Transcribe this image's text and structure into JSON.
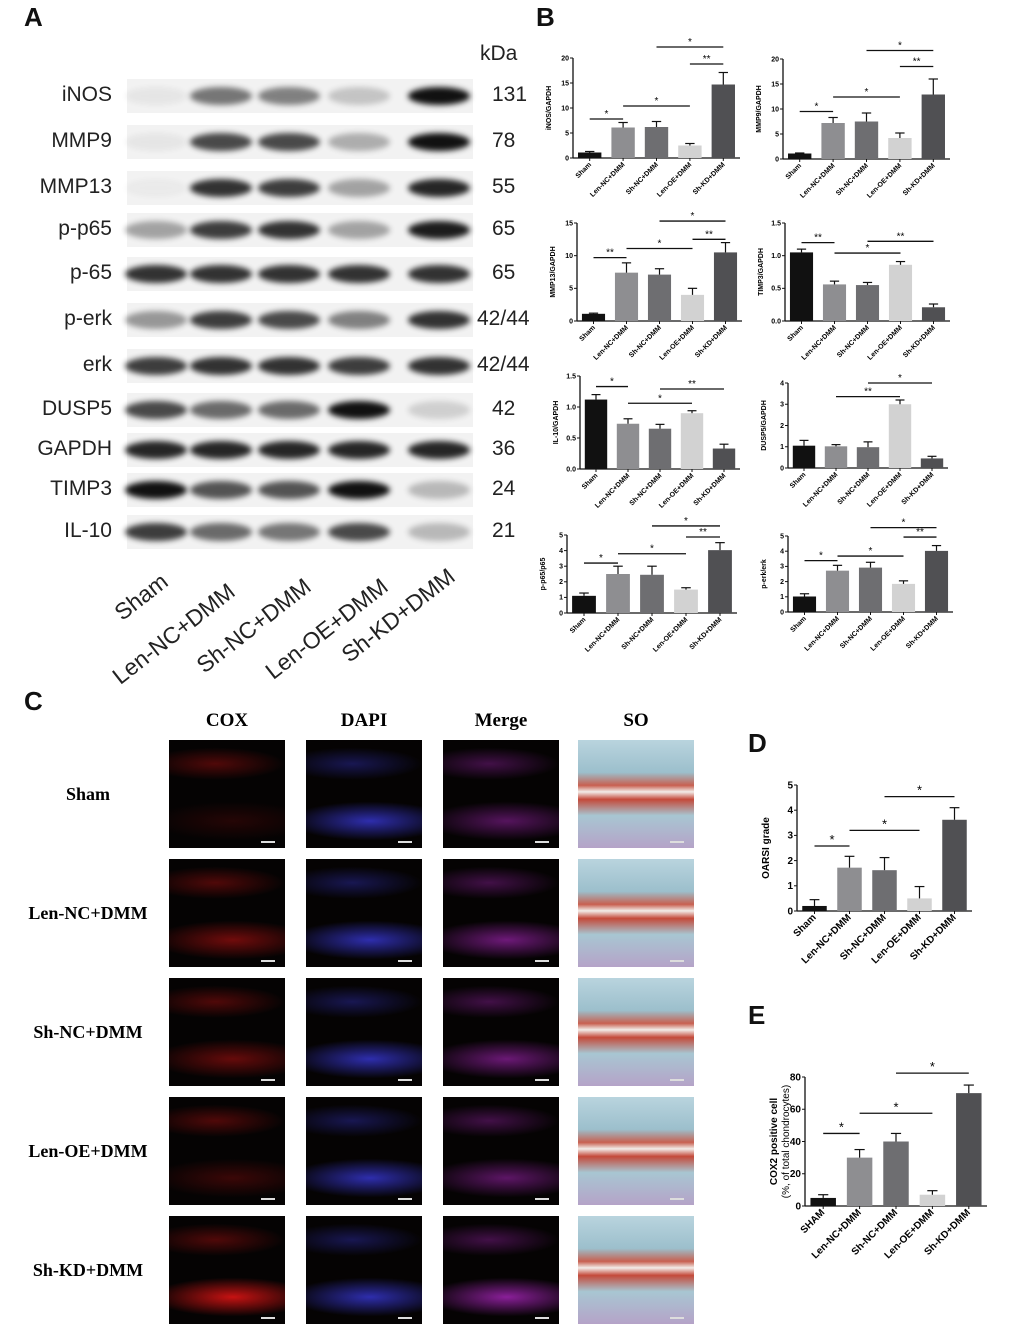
{
  "panels": {
    "a": "A",
    "b": "B",
    "c": "C",
    "d": "D",
    "e": "E"
  },
  "blot": {
    "kda_header": "kDa",
    "rows": [
      {
        "protein": "iNOS",
        "kda": "131"
      },
      {
        "protein": "MMP9",
        "kda": "78"
      },
      {
        "protein": "MMP13",
        "kda": "55"
      },
      {
        "protein": "p-p65",
        "kda": "65"
      },
      {
        "protein": "p-65",
        "kda": "65"
      },
      {
        "protein": "p-erk",
        "kda": "42/44"
      },
      {
        "protein": "erk",
        "kda": "42/44"
      },
      {
        "protein": "DUSP5",
        "kda": "42"
      },
      {
        "protein": "GAPDH",
        "kda": "36"
      },
      {
        "protein": "TIMP3",
        "kda": "24"
      },
      {
        "protein": "IL-10",
        "kda": "21"
      }
    ],
    "lanes": [
      "Sham",
      "Len-NC+DMM",
      "Sh-NC+DMM",
      "Len-OE+DMM",
      "Sh-KD+DMM"
    ]
  },
  "histology": {
    "columns": [
      "COX",
      "DAPI",
      "Merge",
      "SO"
    ],
    "rows": [
      "Sham",
      "Len-NC+DMM",
      "Sh-NC+DMM",
      "Len-OE+DMM",
      "Sh-KD+DMM"
    ]
  },
  "colors": {
    "Sham": "#111111",
    "Len-NC+DMM": "#8e8e91",
    "Sh-NC+DMM": "#6e6e71",
    "Len-OE+DMM": "#d2d2d2",
    "Sh-KD+DMM": "#505053"
  },
  "chart_data": [
    {
      "id": "inos",
      "type": "bar",
      "ylabel": "iNOS/GAPDH",
      "categories": [
        "Sham",
        "Len-NC+DMM",
        "Sh-NC+DMM",
        "Len-OE+DMM",
        "Sh-KD+DMM"
      ],
      "values": [
        1.1,
        6.1,
        6.2,
        2.5,
        14.7
      ],
      "errors": [
        0.2,
        1.0,
        1.1,
        0.4,
        2.4
      ],
      "ylim": [
        0,
        20
      ],
      "yticks": [
        "0",
        "5",
        "10",
        "15",
        "20"
      ],
      "significance": [
        {
          "from": 0,
          "to": 1,
          "label": "*",
          "y": 7.8
        },
        {
          "from": 1,
          "to": 3,
          "label": "*",
          "y": 10.4
        },
        {
          "from": 3,
          "to": 4,
          "label": "**",
          "y": 18.8
        },
        {
          "from": 2,
          "to": 4,
          "label": "*",
          "y": 22.2
        }
      ]
    },
    {
      "id": "mmp9",
      "type": "bar",
      "ylabel": "MMP9/GAPDH",
      "categories": [
        "Sham",
        "Len-NC+DMM",
        "Sh-NC+DMM",
        "Len-OE+DMM",
        "Sh-KD+DMM"
      ],
      "values": [
        1.1,
        7.2,
        7.5,
        4.2,
        12.9
      ],
      "errors": [
        0.1,
        1.1,
        1.7,
        1.0,
        3.1
      ],
      "ylim": [
        0,
        20
      ],
      "yticks": [
        "0",
        "5",
        "10",
        "15",
        "20"
      ],
      "significance": [
        {
          "from": 0,
          "to": 1,
          "label": "*",
          "y": 9.5
        },
        {
          "from": 1,
          "to": 3,
          "label": "*",
          "y": 12.4
        },
        {
          "from": 3,
          "to": 4,
          "label": "**",
          "y": 18.5
        },
        {
          "from": 2,
          "to": 4,
          "label": "*",
          "y": 21.7
        }
      ]
    },
    {
      "id": "mmp13",
      "type": "bar",
      "ylabel": "MMP13/GAPDH",
      "categories": [
        "Sham",
        "Len-NC+DMM",
        "Sh-NC+DMM",
        "Len-OE+DMM",
        "Sh-KD+DMM"
      ],
      "values": [
        1.1,
        7.4,
        7.1,
        4.0,
        10.5
      ],
      "errors": [
        0.1,
        1.5,
        0.9,
        1.0,
        1.5
      ],
      "ylim": [
        0,
        15
      ],
      "yticks": [
        "0",
        "5",
        "10",
        "15"
      ],
      "significance": [
        {
          "from": 0,
          "to": 1,
          "label": "**",
          "y": 9.7
        },
        {
          "from": 1,
          "to": 3,
          "label": "*",
          "y": 11.1
        },
        {
          "from": 3,
          "to": 4,
          "label": "**",
          "y": 12.5
        },
        {
          "from": 2,
          "to": 4,
          "label": "*",
          "y": 15.3
        }
      ]
    },
    {
      "id": "timp3",
      "type": "bar",
      "ylabel": "TIMP3/GAPDH",
      "categories": [
        "Sham",
        "Len-NC+DMM",
        "Sh-NC+DMM",
        "Len-OE+DMM",
        "Sh-KD+DMM"
      ],
      "values": [
        1.05,
        0.56,
        0.55,
        0.86,
        0.21
      ],
      "errors": [
        0.05,
        0.05,
        0.04,
        0.05,
        0.05
      ],
      "ylim": [
        0,
        1.5
      ],
      "yticks": [
        "0.0",
        "0.5",
        "1.0",
        "1.5"
      ],
      "significance": [
        {
          "from": 0,
          "to": 1,
          "label": "**",
          "y": 1.2
        },
        {
          "from": 1,
          "to": 3,
          "label": "*",
          "y": 1.04
        },
        {
          "from": 2,
          "to": 4,
          "label": "**",
          "y": 1.22
        }
      ]
    },
    {
      "id": "il10",
      "type": "bar",
      "ylabel": "IL-10/GAPDH",
      "categories": [
        "Sham",
        "Len-NC+DMM",
        "Sh-NC+DMM",
        "Len-OE+DMM",
        "Sh-KD+DMM"
      ],
      "values": [
        1.12,
        0.73,
        0.65,
        0.9,
        0.33
      ],
      "errors": [
        0.08,
        0.08,
        0.07,
        0.04,
        0.07
      ],
      "ylim": [
        0,
        1.5
      ],
      "yticks": [
        "0.0",
        "0.5",
        "1.0",
        "1.5"
      ],
      "significance": [
        {
          "from": 0,
          "to": 1,
          "label": "*",
          "y": 1.33
        },
        {
          "from": 1,
          "to": 3,
          "label": "*",
          "y": 1.06
        },
        {
          "from": 2,
          "to": 4,
          "label": "**",
          "y": 1.29
        }
      ]
    },
    {
      "id": "dusp5",
      "type": "bar",
      "ylabel": "DUSP5/GAPDH",
      "categories": [
        "Sham",
        "Len-NC+DMM",
        "Sh-NC+DMM",
        "Len-OE+DMM",
        "Sh-KD+DMM"
      ],
      "values": [
        1.05,
        1.02,
        0.98,
        3.0,
        0.45
      ],
      "errors": [
        0.25,
        0.08,
        0.25,
        0.2,
        0.1
      ],
      "ylim": [
        0,
        4
      ],
      "yticks": [
        "0",
        "1",
        "2",
        "3",
        "4"
      ],
      "significance": [
        {
          "from": 1,
          "to": 3,
          "label": "**",
          "y": 3.36
        },
        {
          "from": 2,
          "to": 4,
          "label": "*",
          "y": 4.0
        }
      ]
    },
    {
      "id": "pp65",
      "type": "bar",
      "ylabel": "p-p65/p65",
      "categories": [
        "Sham",
        "Len-NC+DMM",
        "Sh-NC+DMM",
        "Len-OE+DMM",
        "Sh-KD+DMM"
      ],
      "values": [
        1.1,
        2.5,
        2.45,
        1.5,
        4.03
      ],
      "errors": [
        0.18,
        0.5,
        0.55,
        0.12,
        0.48
      ],
      "ylim": [
        0,
        5
      ],
      "yticks": [
        "0",
        "1",
        "2",
        "3",
        "4",
        "5"
      ],
      "significance": [
        {
          "from": 0,
          "to": 1,
          "label": "*",
          "y": 3.2
        },
        {
          "from": 1,
          "to": 3,
          "label": "*",
          "y": 3.8
        },
        {
          "from": 3,
          "to": 4,
          "label": "**",
          "y": 4.87
        },
        {
          "from": 2,
          "to": 4,
          "label": "*",
          "y": 5.58
        }
      ]
    },
    {
      "id": "perk",
      "type": "bar",
      "ylabel": "p-erk/erk",
      "categories": [
        "Sham",
        "Len-NC+DMM",
        "Sh-NC+DMM",
        "Len-OE+DMM",
        "Sh-KD+DMM"
      ],
      "values": [
        1.02,
        2.72,
        2.92,
        1.85,
        4.02
      ],
      "errors": [
        0.18,
        0.35,
        0.35,
        0.2,
        0.35
      ],
      "ylim": [
        0,
        5
      ],
      "yticks": [
        "0",
        "1",
        "2",
        "3",
        "4",
        "5"
      ],
      "significance": [
        {
          "from": 0,
          "to": 1,
          "label": "*",
          "y": 3.38
        },
        {
          "from": 1,
          "to": 3,
          "label": "*",
          "y": 3.68
        },
        {
          "from": 3,
          "to": 4,
          "label": "**",
          "y": 4.93
        },
        {
          "from": 2,
          "to": 4,
          "label": "*",
          "y": 5.55
        }
      ]
    },
    {
      "id": "oarsi",
      "type": "bar",
      "ylabel": "OARSI grade",
      "categories": [
        "Sham",
        "Len-NC+DMM",
        "Sh-NC+DMM",
        "Len-OE+DMM",
        "Sh-KD+DMM"
      ],
      "values": [
        0.2,
        1.72,
        1.62,
        0.5,
        3.62
      ],
      "errors": [
        0.25,
        0.45,
        0.5,
        0.47,
        0.48
      ],
      "ylim": [
        0,
        5
      ],
      "yticks": [
        "0",
        "1",
        "2",
        "3",
        "4",
        "5"
      ],
      "significance": [
        {
          "from": 0,
          "to": 1,
          "label": "*",
          "y": 2.58
        },
        {
          "from": 1,
          "to": 3,
          "label": "*",
          "y": 3.2
        },
        {
          "from": 2,
          "to": 4,
          "label": "*",
          "y": 4.54
        }
      ]
    },
    {
      "id": "cox2",
      "type": "bar",
      "ylabel": "COX2 positive cell",
      "ylabel2": "(%,  of total chondrocytes)",
      "categories": [
        "SHAM",
        "Len-NC+DMM",
        "Sh-NC+DMM",
        "Len-OE+DMM",
        "Sh-KD+DMM"
      ],
      "values": [
        5,
        30,
        40,
        7,
        70
      ],
      "errors": [
        2,
        5,
        5,
        2.5,
        5
      ],
      "ylim": [
        0,
        80
      ],
      "yticks": [
        "0",
        "20",
        "40",
        "60",
        "80"
      ],
      "significance": [
        {
          "from": 0,
          "to": 1,
          "label": "*",
          "y": 45
        },
        {
          "from": 1,
          "to": 3,
          "label": "*",
          "y": 57.5
        },
        {
          "from": 2,
          "to": 4,
          "label": "*",
          "y": 82.4
        }
      ]
    }
  ]
}
